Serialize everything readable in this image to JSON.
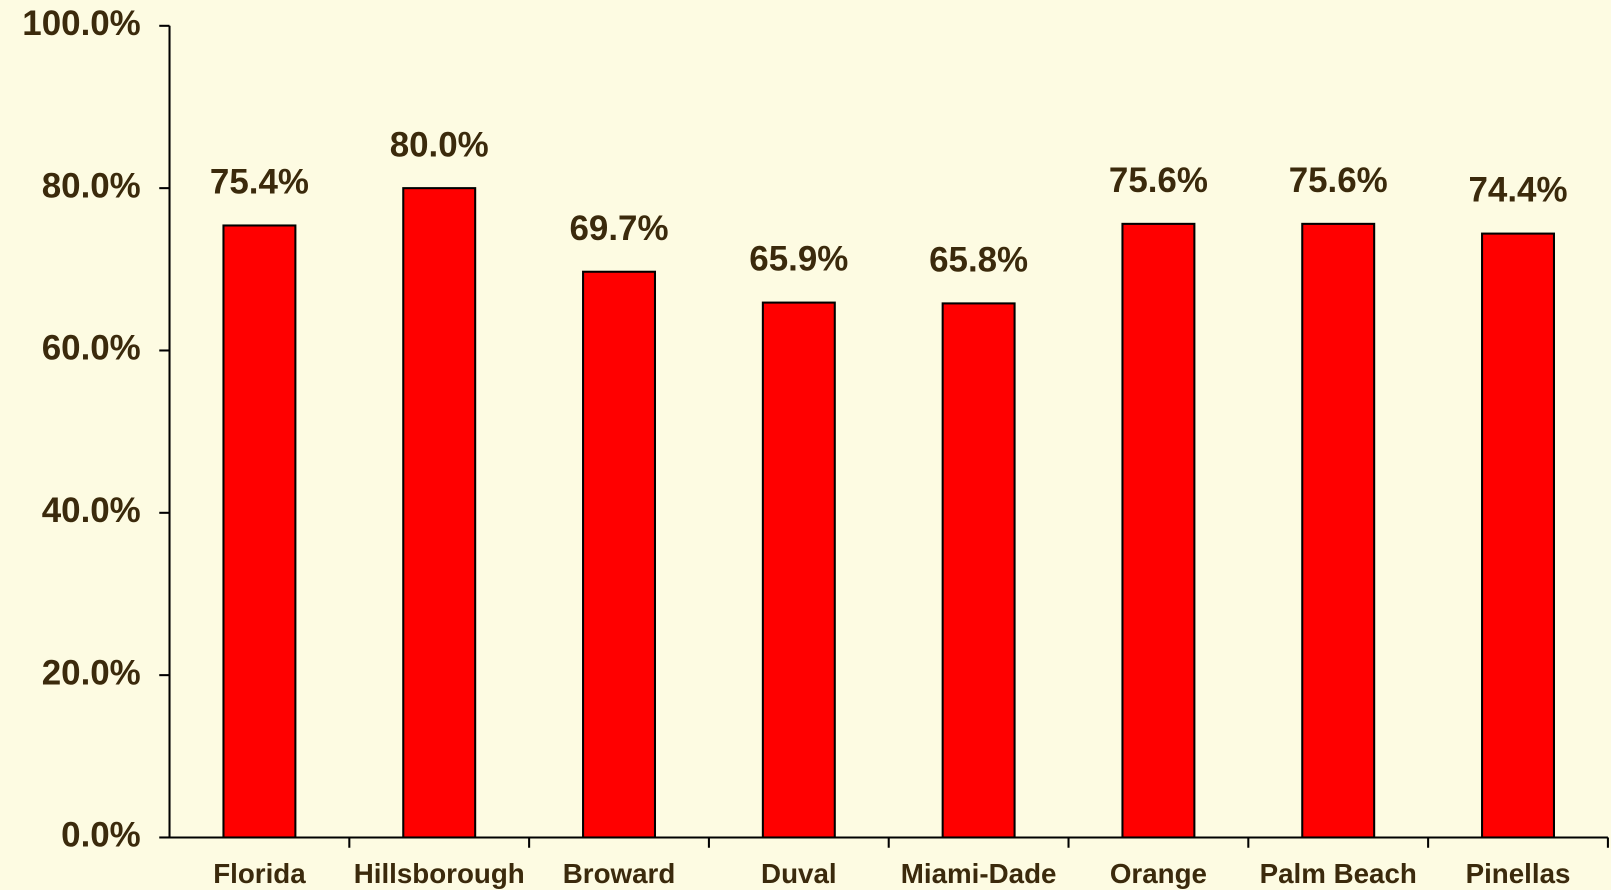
{
  "chart_data": {
    "type": "bar",
    "categories": [
      "Florida",
      "Hillsborough",
      "Broward",
      "Duval",
      "Miami-Dade",
      "Orange",
      "Palm Beach",
      "Pinellas"
    ],
    "values": [
      75.4,
      80.0,
      69.7,
      65.9,
      65.8,
      75.6,
      75.6,
      74.4
    ],
    "value_labels": [
      "75.4%",
      "80.0%",
      "69.7%",
      "65.9%",
      "65.8%",
      "75.6%",
      "75.6%",
      "74.4%"
    ],
    "color": "#ff0000",
    "ylim": [
      0,
      100
    ],
    "yticks": [
      {
        "value": 0,
        "label": "0.0%"
      },
      {
        "value": 20,
        "label": "20.0%"
      },
      {
        "value": 40,
        "label": "40.0%"
      },
      {
        "value": 60,
        "label": "60.0%"
      },
      {
        "value": 80,
        "label": "80.0%"
      },
      {
        "value": 100,
        "label": "100.0%"
      }
    ],
    "grid": false
  }
}
